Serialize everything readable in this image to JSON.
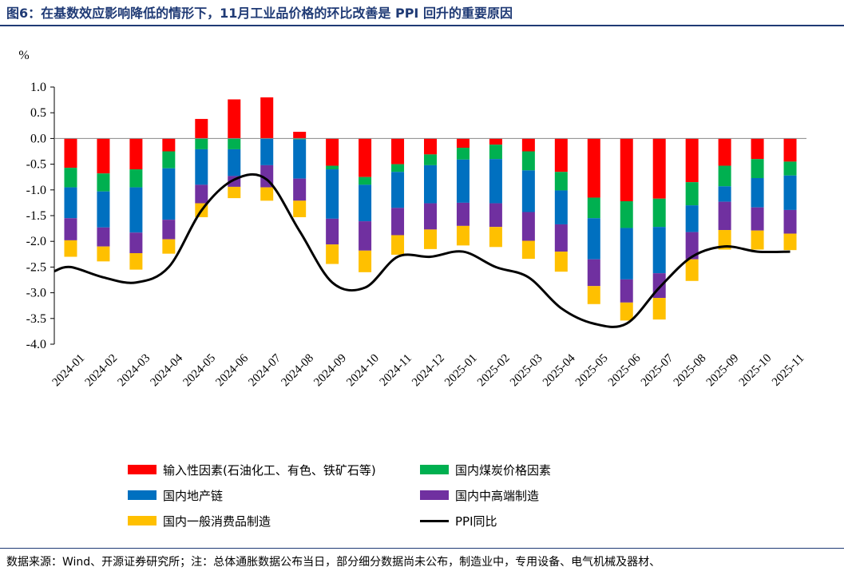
{
  "title": "图6：在基数效应影响降低的情形下，11月工业品价格的环比改善是 PPI 回升的重要原因",
  "source": "数据来源：Wind、开源证券研究所；注：总体通胀数据公布当日，部分细分数据尚未公布，制造业中，专用设备、电气机械及器材、",
  "chart_data": {
    "type": "bar",
    "stacked": true,
    "ylabel": "%",
    "ylim": [
      -4.0,
      1.0
    ],
    "yticks": [
      1.0,
      0.5,
      0.0,
      -0.5,
      -1.0,
      -1.5,
      -2.0,
      -2.5,
      -3.0,
      -3.5,
      -4.0
    ],
    "ytick_labels": [
      "1.0",
      "0.5",
      "0.0",
      "-0.5",
      "-1.0",
      "-1.5",
      "-2.0",
      "-2.5",
      "-3.0",
      "-3.5",
      "-4.0"
    ],
    "categories": [
      "2024-01",
      "2024-02",
      "2024-03",
      "2024-04",
      "2024-05",
      "2024-06",
      "2024-07",
      "2024-08",
      "2024-09",
      "2024-10",
      "2024-11",
      "2024-12",
      "2025-01",
      "2025-02",
      "2025-03",
      "2025-04",
      "2025-05",
      "2025-06",
      "2025-07",
      "2025-08",
      "2025-09",
      "2025-10",
      "2025-11"
    ],
    "series": [
      {
        "name": "输入性因素(石油化工、有色、铁矿石等)",
        "color": "#ff0000",
        "values": [
          -0.57,
          -0.68,
          -0.6,
          -0.25,
          0.38,
          0.76,
          0.8,
          0.13,
          -0.53,
          -0.75,
          -0.5,
          -0.31,
          -0.18,
          -0.12,
          -0.25,
          -0.65,
          -1.15,
          -1.22,
          -1.17,
          -0.85,
          -0.53,
          -0.4,
          -0.45
        ]
      },
      {
        "name": "国内煤炭价格因素",
        "color": "#00b050",
        "values": [
          -0.38,
          -0.35,
          -0.35,
          -0.33,
          -0.21,
          -0.21,
          0.0,
          -0.02,
          -0.07,
          -0.15,
          -0.15,
          -0.21,
          -0.23,
          -0.28,
          -0.37,
          -0.36,
          -0.4,
          -0.52,
          -0.55,
          -0.45,
          -0.4,
          -0.37,
          -0.27
        ]
      },
      {
        "name": "国内地产链",
        "color": "#0070c0",
        "values": [
          -0.6,
          -0.7,
          -0.88,
          -1.0,
          -0.69,
          -0.52,
          -0.52,
          -0.76,
          -0.96,
          -0.71,
          -0.7,
          -0.74,
          -0.84,
          -0.86,
          -0.81,
          -0.66,
          -0.8,
          -1.0,
          -0.9,
          -0.52,
          -0.3,
          -0.57,
          -0.67
        ]
      },
      {
        "name": "国内中高端制造",
        "color": "#7030a0",
        "values": [
          -0.43,
          -0.37,
          -0.4,
          -0.38,
          -0.36,
          -0.21,
          -0.43,
          -0.43,
          -0.5,
          -0.57,
          -0.53,
          -0.51,
          -0.45,
          -0.46,
          -0.56,
          -0.53,
          -0.52,
          -0.45,
          -0.48,
          -0.53,
          -0.55,
          -0.45,
          -0.46
        ]
      },
      {
        "name": "国内一般消费品制造",
        "color": "#ffc000",
        "values": [
          -0.32,
          -0.29,
          -0.32,
          -0.28,
          -0.27,
          -0.22,
          -0.26,
          -0.32,
          -0.38,
          -0.42,
          -0.38,
          -0.38,
          -0.38,
          -0.39,
          -0.35,
          -0.39,
          -0.35,
          -0.35,
          -0.42,
          -0.42,
          -0.38,
          -0.37,
          -0.32
        ]
      }
    ],
    "line_series": {
      "name": "PPI同比",
      "color": "#000000",
      "values": [
        -2.5,
        -2.7,
        -2.8,
        -2.5,
        -1.4,
        -0.8,
        -0.8,
        -1.8,
        -2.8,
        -2.9,
        -2.3,
        -2.3,
        -2.2,
        -2.5,
        -2.7,
        -3.3,
        -3.6,
        -3.6,
        -2.9,
        -2.3,
        -2.1,
        -2.2,
        -2.2
      ]
    }
  }
}
